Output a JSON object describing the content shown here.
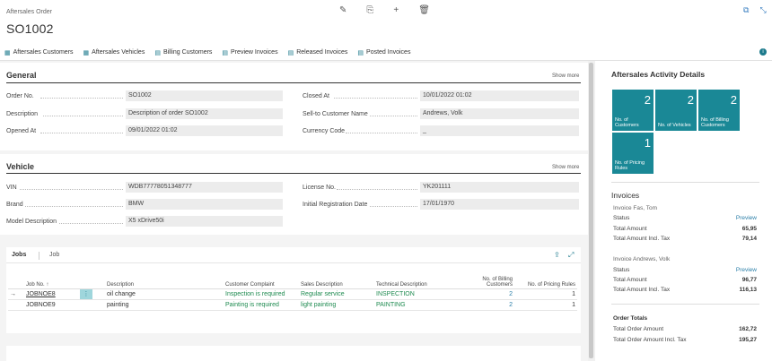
{
  "header": {
    "breadcrumb": "Aftersales Order",
    "title": "SO1002"
  },
  "actions": [
    {
      "label": "Aftersales Customers",
      "icon": "customers-icon"
    },
    {
      "label": "Aftersales Vehicles",
      "icon": "vehicle-icon"
    },
    {
      "label": "Billing Customers",
      "icon": "billing-icon"
    },
    {
      "label": "Preview Invoices",
      "icon": "preview-icon"
    },
    {
      "label": "Released Invoices",
      "icon": "release-icon"
    },
    {
      "label": "Posted Invoices",
      "icon": "posted-icon"
    }
  ],
  "general": {
    "title": "General",
    "show_more": "Show more",
    "fields_left": [
      {
        "label": "Order No.",
        "value": "SO1002"
      },
      {
        "label": "Description",
        "value": "Description of order SO1002"
      },
      {
        "label": "Opened At",
        "value": "09/01/2022 01:02"
      }
    ],
    "fields_right": [
      {
        "label": "Closed At",
        "value": "10/01/2022 01:02"
      },
      {
        "label": "Sell-to Customer Name",
        "value": "Andrews, Volk"
      },
      {
        "label": "Currency Code",
        "value": "_"
      }
    ]
  },
  "vehicle": {
    "title": "Vehicle",
    "show_more": "Show more",
    "fields_left": [
      {
        "label": "VIN",
        "value": "WDB77778051348777"
      },
      {
        "label": "Brand",
        "value": "BMW"
      },
      {
        "label": "Model Description",
        "value": "X5 xDrive50i"
      }
    ],
    "fields_right": [
      {
        "label": "License No.",
        "value": "YK201111"
      },
      {
        "label": "Initial Registration Date",
        "value": "17/01/1970"
      }
    ]
  },
  "jobs": {
    "tab_jobs": "Jobs",
    "tab_job": "Job",
    "columns": [
      "Job No. ↑",
      "Description",
      "Customer Complaint",
      "Sales Description",
      "Technical Description",
      "No. of Billing Customers",
      "No. of Pricing Rules"
    ],
    "rows": [
      {
        "job_no": "JOBNOE8",
        "description": "oil change",
        "complaint": "Inspection is required",
        "sales": "Regular service",
        "technical": "INSPECTION",
        "billing": "2",
        "pricing": "1"
      },
      {
        "job_no": "JOBNOE9",
        "description": "painting",
        "complaint": "Painting is required",
        "sales": "light painting",
        "technical": "PAINTING",
        "billing": "2",
        "pricing": "1"
      }
    ]
  },
  "factbox": {
    "title": "Aftersales Activity Details",
    "tiles": [
      {
        "value": "2",
        "label": "No. of Customers"
      },
      {
        "value": "2",
        "label": "No. of Vehicles"
      },
      {
        "value": "2",
        "label": "No. of Billing Customers"
      },
      {
        "value": "1",
        "label": "No. of Pricing Rules"
      }
    ],
    "invoices_title": "Invoices",
    "invoices": [
      {
        "name": "Invoice Fas, Tom",
        "status_label": "Status",
        "status_value": "Preview",
        "total_label": "Total Amount",
        "total_value": "65,95",
        "incl_label": "Total Amount Incl. Tax",
        "incl_value": "79,14"
      },
      {
        "name": "Invoice Andrews, Volk",
        "status_label": "Status",
        "status_value": "Preview",
        "total_label": "Total Amount",
        "total_value": "96,77",
        "incl_label": "Total Amount Incl. Tax",
        "incl_value": "116,13"
      }
    ],
    "order_totals_title": "Order Totals",
    "total_order_label": "Total Order Amount",
    "total_order_value": "162,72",
    "total_order_incl_label": "Total Order Amount Incl. Tax",
    "total_order_incl_value": "195,27"
  },
  "colors": {
    "accent": "#1a8896",
    "link": "#2b7fa8",
    "green": "#1d8a4f"
  }
}
